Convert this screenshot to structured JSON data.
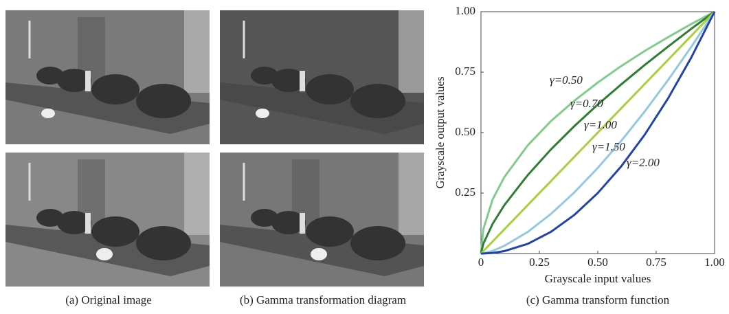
{
  "captions": [
    "(a) Original image",
    "(b) Gamma transformation diagram",
    "(c) Gamma transform function"
  ],
  "chart_data": {
    "type": "line",
    "xlabel": "Grayscale input values",
    "ylabel": "Grayscale output values",
    "x": [
      0,
      0.01,
      0.05,
      0.1,
      0.2,
      0.3,
      0.4,
      0.5,
      0.6,
      0.7,
      0.8,
      0.9,
      1
    ],
    "series": [
      {
        "name": "γ=0.50",
        "color": "#80cc8c",
        "values": [
          0,
          0.1,
          0.224,
          0.316,
          0.447,
          0.548,
          0.632,
          0.707,
          0.775,
          0.837,
          0.894,
          0.949,
          1
        ]
      },
      {
        "name": "γ=0.70",
        "color": "#2e7d32",
        "values": [
          0,
          0.04,
          0.123,
          0.2,
          0.324,
          0.431,
          0.527,
          0.616,
          0.699,
          0.779,
          0.855,
          0.929,
          1
        ]
      },
      {
        "name": "γ=1.00",
        "color": "#a6d13c",
        "values": [
          0,
          0.01,
          0.05,
          0.1,
          0.2,
          0.3,
          0.4,
          0.5,
          0.6,
          0.7,
          0.8,
          0.9,
          1
        ]
      },
      {
        "name": "γ=1.50",
        "color": "#92c9dc",
        "values": [
          0,
          0.001,
          0.011,
          0.032,
          0.089,
          0.164,
          0.253,
          0.354,
          0.465,
          0.586,
          0.716,
          0.854,
          1
        ]
      },
      {
        "name": "γ=2.00",
        "color": "#2343a8",
        "values": [
          0,
          0.0001,
          0.0025,
          0.01,
          0.04,
          0.09,
          0.16,
          0.25,
          0.36,
          0.49,
          0.64,
          0.81,
          1
        ]
      }
    ],
    "xlim": [
      0,
      1
    ],
    "ylim": [
      0,
      1
    ],
    "xticks": [
      0,
      0.25,
      {
        "value": 0.5,
        "label": "0.50"
      },
      0.75,
      {
        "value": 1,
        "label": "1.00"
      }
    ],
    "yticks": [
      0.25,
      {
        "value": 0.5,
        "label": "0.50"
      },
      0.75,
      {
        "value": 1,
        "label": "1.00"
      }
    ],
    "grid": false
  }
}
